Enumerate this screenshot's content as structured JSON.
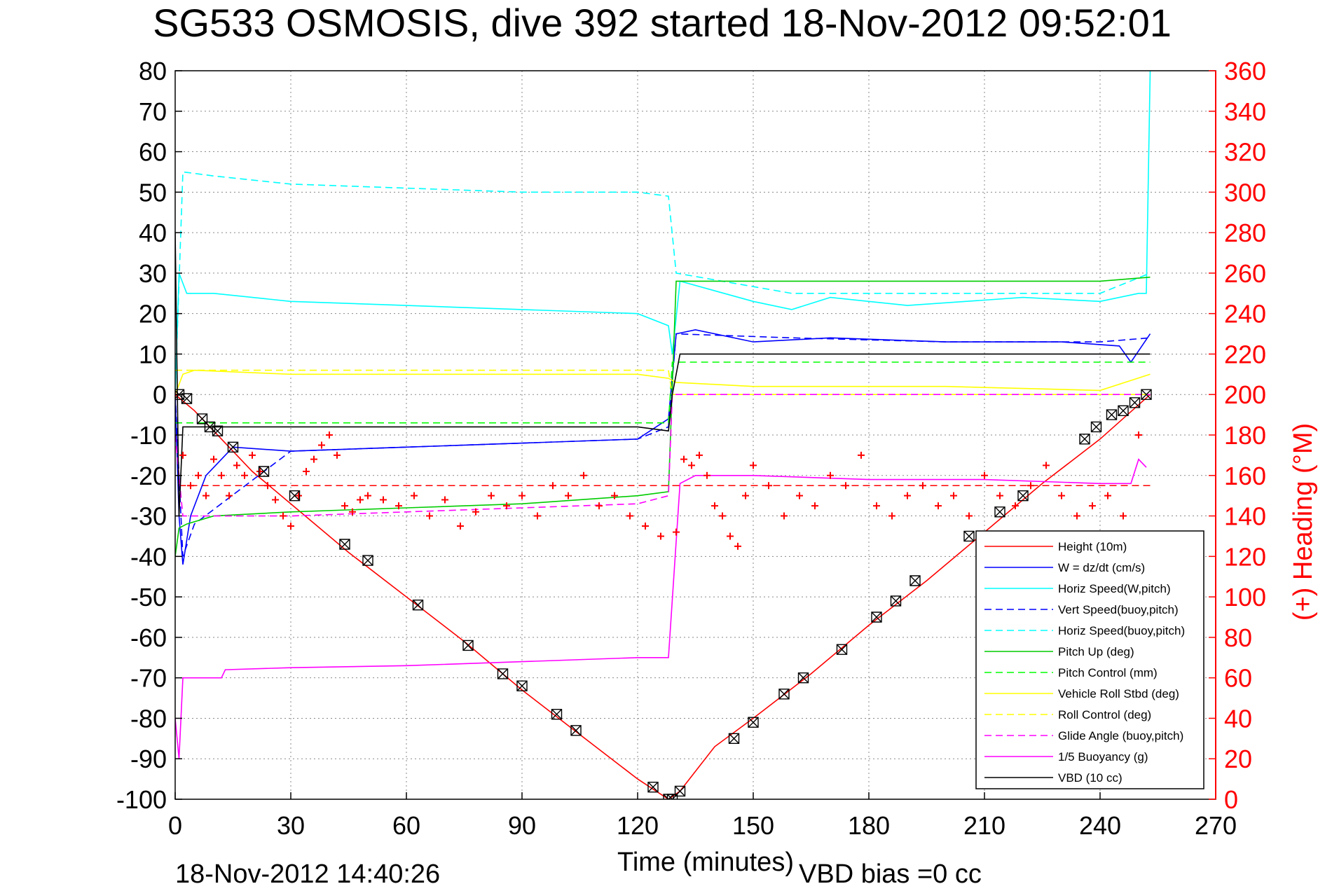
{
  "title": "SG533 OSMOSIS, dive 392 started 18-Nov-2012 09:52:01",
  "footer_timestamp": "18-Nov-2012 14:40:26",
  "footer_vbd": "VBD bias =0 cc",
  "colors": {
    "height": "#ff0000",
    "w": "#0000ff",
    "horiz": "#00ffff",
    "pitch": "#00cc00",
    "pitchcontrol": "#00ff00",
    "roll": "#ffff00",
    "glide": "#ff00ff",
    "buoy": "#ff00ff",
    "vbd": "#000000",
    "heading": "#ff0000"
  },
  "chart_data": {
    "type": "line",
    "xlabel": "Time (minutes)",
    "ylabel_right": "(+) Heading (°M)",
    "xlim": [
      0,
      270
    ],
    "ylim": [
      -100,
      80
    ],
    "ylim_right": [
      0,
      360
    ],
    "x_ticks": [
      "0",
      "30",
      "60",
      "90",
      "120",
      "150",
      "180",
      "210",
      "240",
      "270"
    ],
    "y_ticks": [
      "80",
      "70",
      "60",
      "50",
      "40",
      "30",
      "20",
      "10",
      "0",
      "-10",
      "-20",
      "-30",
      "-40",
      "-50",
      "-60",
      "-70",
      "-80",
      "-90",
      "-100"
    ],
    "y_ticks_right": [
      "360",
      "340",
      "320",
      "300",
      "280",
      "260",
      "240",
      "220",
      "200",
      "180",
      "160",
      "140",
      "120",
      "100",
      "80",
      "60",
      "40",
      "20",
      "0"
    ],
    "grid": true,
    "legend_position": "bottom-right",
    "series": [
      {
        "name": "Height (10m)",
        "style": "solid",
        "color": "#ff0000",
        "x": [
          0,
          5,
          10,
          20,
          30,
          45,
          60,
          75,
          90,
          105,
          120,
          128,
          131,
          140,
          150,
          165,
          180,
          195,
          210,
          225,
          240,
          253
        ],
        "y": [
          0,
          -4,
          -9,
          -19,
          -27,
          -39,
          -50,
          -61,
          -73,
          -84,
          -95,
          -100,
          -98,
          -87,
          -80,
          -69,
          -57,
          -46,
          -34,
          -22,
          -11,
          0
        ]
      },
      {
        "name": "W = dz/dt (cm/s)",
        "style": "solid",
        "color": "#0000ff",
        "x": [
          0,
          1,
          2,
          4,
          8,
          15,
          30,
          60,
          90,
          120,
          128,
          130,
          135,
          150,
          170,
          200,
          230,
          245,
          248,
          253
        ],
        "y": [
          0,
          -30,
          -42,
          -30,
          -20,
          -13,
          -14,
          -13,
          -12,
          -11,
          -6,
          15,
          16,
          13,
          14,
          13,
          13,
          12,
          8,
          15
        ]
      },
      {
        "name": "Horiz Speed(W,pitch)",
        "style": "solid",
        "color": "#00ffff",
        "x": [
          0,
          1,
          3,
          10,
          30,
          60,
          90,
          120,
          128,
          129,
          131,
          150,
          160,
          170,
          190,
          220,
          240,
          250,
          252,
          253
        ],
        "y": [
          0,
          30,
          25,
          25,
          23,
          22,
          21,
          20,
          17,
          10,
          28,
          23,
          21,
          24,
          22,
          24,
          23,
          25,
          25,
          80
        ]
      },
      {
        "name": "Vert Speed(buoy,pitch)",
        "style": "dashed",
        "color": "#0000ff",
        "x": [
          0,
          2,
          5,
          30,
          60,
          90,
          120,
          128,
          130,
          160,
          200,
          240,
          253
        ],
        "y": [
          0,
          -40,
          -32,
          -14,
          -13,
          -12,
          -11,
          -8,
          15,
          14,
          13,
          13,
          14
        ]
      },
      {
        "name": "Horiz Speed(buoy,pitch)",
        "style": "dashed",
        "color": "#00ffff",
        "x": [
          0,
          2,
          10,
          30,
          60,
          90,
          120,
          128,
          130,
          160,
          200,
          240,
          253
        ],
        "y": [
          0,
          55,
          54,
          52,
          51,
          50,
          50,
          49,
          30,
          25,
          25,
          25,
          30
        ]
      },
      {
        "name": "Pitch Up (deg)",
        "style": "solid",
        "color": "#00cc00",
        "x": [
          0,
          1,
          3,
          10,
          30,
          60,
          90,
          120,
          128,
          130,
          150,
          200,
          240,
          253
        ],
        "y": [
          -40,
          -33,
          -32,
          -30,
          -29,
          -28,
          -27,
          -25,
          -24,
          28,
          28,
          28,
          28,
          29
        ]
      },
      {
        "name": "Pitch Control (mm)",
        "style": "dashed",
        "color": "#00ff00",
        "x": [
          0,
          2,
          128,
          129,
          253
        ],
        "y": [
          -7,
          -7,
          -7,
          8,
          8
        ]
      },
      {
        "name": "Vehicle Roll Stbd (deg)",
        "style": "solid",
        "color": "#ffff00",
        "x": [
          0,
          2,
          5,
          30,
          60,
          90,
          120,
          128,
          130,
          150,
          200,
          240,
          253
        ],
        "y": [
          0,
          5,
          6,
          5,
          5,
          5,
          5,
          4,
          3,
          2,
          2,
          1,
          5
        ]
      },
      {
        "name": "Roll Control (deg)",
        "style": "dashed",
        "color": "#ffff00",
        "x": [
          0,
          128,
          129,
          253
        ],
        "y": [
          6,
          6,
          0,
          0
        ]
      },
      {
        "name": "Glide Angle (buoy,pitch)",
        "style": "dashed",
        "color": "#ff00ff",
        "x": [
          0,
          2,
          30,
          60,
          90,
          120,
          128,
          129,
          253
        ],
        "y": [
          -10,
          -30,
          -30,
          -29,
          -28,
          -27,
          -25,
          0,
          0
        ]
      },
      {
        "name": "1/5 Buoyancy (g)",
        "style": "solid",
        "color": "#ff00ff",
        "x": [
          0,
          1,
          2,
          12,
          13,
          30,
          60,
          90,
          120,
          128,
          131,
          135,
          150,
          180,
          210,
          240,
          248,
          250,
          252
        ],
        "y": [
          -80,
          -90,
          -70,
          -70,
          -68,
          -67.5,
          -67,
          -66,
          -65,
          -65,
          -22,
          -20,
          -20,
          -21,
          -21,
          -22,
          -22,
          -16,
          -18
        ]
      },
      {
        "name": "VBD (10 cc)",
        "style": "solid",
        "color": "#000000",
        "x": [
          0,
          1,
          2,
          10,
          30,
          60,
          90,
          120,
          128,
          129,
          131,
          200,
          245,
          248,
          253
        ],
        "y": [
          40,
          -30,
          -8,
          -8,
          -8,
          -8,
          -8,
          -8,
          -9,
          0,
          10,
          10,
          10,
          10,
          10
        ]
      }
    ],
    "heading_reference": {
      "style": "dashed",
      "color": "#ff0000",
      "y_right": 155
    },
    "heading_points": {
      "marker": "+",
      "color": "#ff0000",
      "x": [
        0,
        2,
        4,
        6,
        8,
        10,
        12,
        14,
        16,
        18,
        20,
        22,
        24,
        26,
        28,
        30,
        32,
        34,
        36,
        38,
        40,
        42,
        44,
        46,
        48,
        50,
        54,
        58,
        62,
        66,
        70,
        74,
        78,
        82,
        86,
        90,
        94,
        98,
        102,
        106,
        110,
        114,
        118,
        122,
        126,
        130,
        132,
        134,
        136,
        138,
        140,
        142,
        144,
        146,
        148,
        150,
        154,
        158,
        162,
        166,
        170,
        174,
        178,
        182,
        186,
        190,
        194,
        198,
        202,
        206,
        210,
        214,
        218,
        222,
        226,
        230,
        234,
        238,
        242,
        246,
        250
      ],
      "y_right": [
        200,
        170,
        155,
        160,
        150,
        168,
        160,
        150,
        165,
        160,
        170,
        162,
        155,
        148,
        140,
        135,
        150,
        162,
        168,
        175,
        180,
        170,
        145,
        142,
        148,
        150,
        148,
        145,
        150,
        140,
        148,
        135,
        142,
        150,
        145,
        150,
        140,
        155,
        150,
        160,
        145,
        150,
        140,
        135,
        130,
        132,
        168,
        165,
        170,
        160,
        145,
        140,
        130,
        125,
        150,
        165,
        155,
        140,
        150,
        145,
        160,
        155,
        170,
        145,
        140,
        150,
        155,
        145,
        150,
        140,
        160,
        150,
        145,
        155,
        165,
        150,
        140,
        145,
        150,
        140,
        180
      ]
    },
    "depth_markers": {
      "marker": "square-x",
      "color": "#000000",
      "x": [
        1,
        3,
        7,
        9,
        11,
        15,
        23,
        31,
        44,
        50,
        63,
        76,
        85,
        90,
        99,
        104,
        124,
        128,
        129,
        131,
        145,
        150,
        158,
        163,
        173,
        182,
        187,
        192,
        206,
        214,
        220,
        236,
        239,
        243,
        246,
        249,
        252
      ],
      "y": [
        0,
        -1,
        -6,
        -8,
        -9,
        -13,
        -19,
        -25,
        -37,
        -41,
        -52,
        -62,
        -69,
        -72,
        -79,
        -83,
        -97,
        -100,
        -100,
        -98,
        -85,
        -81,
        -74,
        -70,
        -63,
        -55,
        -51,
        -46,
        -35,
        -29,
        -25,
        -11,
        -8,
        -5,
        -4,
        -2,
        0
      ]
    },
    "legend": [
      "Height (10m)",
      "W = dz/dt (cm/s)",
      "Horiz Speed(W,pitch)",
      "Vert Speed(buoy,pitch)",
      "Horiz Speed(buoy,pitch)",
      "Pitch Up (deg)",
      "Pitch Control (mm)",
      "Vehicle Roll Stbd (deg)",
      "Roll Control (deg)",
      "Glide Angle (buoy,pitch)",
      "1/5 Buoyancy (g)",
      "VBD (10 cc)"
    ]
  }
}
